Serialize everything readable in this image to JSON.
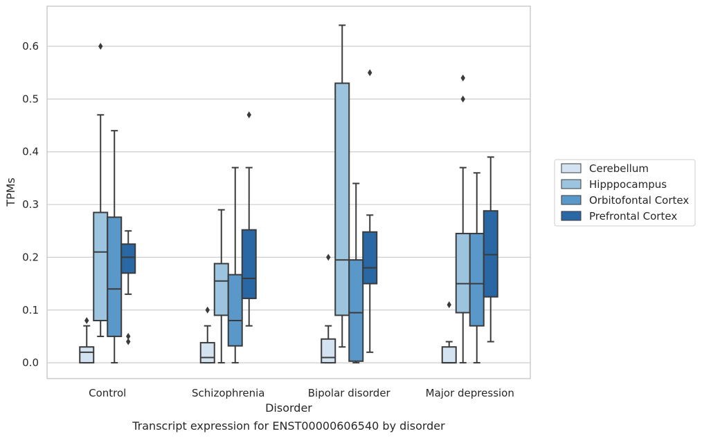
{
  "chart_data": {
    "type": "box",
    "xlabel": "Disorder",
    "ylabel": "TPMs",
    "caption": "Transcript expression for ENST00000606540 by disorder",
    "ylim": [
      -0.03,
      0.676
    ],
    "yticks": [
      0.0,
      0.1,
      0.2,
      0.3,
      0.4,
      0.5,
      0.6
    ],
    "ytick_labels": [
      "0.0",
      "0.1",
      "0.2",
      "0.3",
      "0.4",
      "0.5",
      "0.6"
    ],
    "grid": "horizontal",
    "legend_position": "right",
    "categories": [
      "Control",
      "Schizophrenia",
      "Bipolar disorder",
      "Major depression"
    ],
    "series": [
      {
        "name": "Cerebellum",
        "color": "#d4e3f2",
        "boxes": [
          {
            "whislo": 0.0,
            "q1": 0.0,
            "med": 0.02,
            "q3": 0.03,
            "whishi": 0.07,
            "fliers": [
              0.08
            ]
          },
          {
            "whislo": 0.0,
            "q1": 0.0,
            "med": 0.01,
            "q3": 0.038,
            "whishi": 0.07,
            "fliers": [
              0.1
            ]
          },
          {
            "whislo": 0.0,
            "q1": 0.0,
            "med": 0.01,
            "q3": 0.045,
            "whishi": 0.07,
            "fliers": [
              0.2
            ]
          },
          {
            "whislo": 0.0,
            "q1": 0.0,
            "med": 0.0,
            "q3": 0.03,
            "whishi": 0.04,
            "fliers": [
              0.11
            ]
          }
        ]
      },
      {
        "name": "Hipppocampus",
        "color": "#9cc4df",
        "boxes": [
          {
            "whislo": 0.05,
            "q1": 0.08,
            "med": 0.21,
            "q3": 0.285,
            "whishi": 0.47,
            "fliers": [
              0.6
            ]
          },
          {
            "whislo": 0.0,
            "q1": 0.09,
            "med": 0.155,
            "q3": 0.188,
            "whishi": 0.29,
            "fliers": []
          },
          {
            "whislo": 0.03,
            "q1": 0.09,
            "med": 0.195,
            "q3": 0.53,
            "whishi": 0.64,
            "fliers": []
          },
          {
            "whislo": 0.0,
            "q1": 0.095,
            "med": 0.15,
            "q3": 0.245,
            "whishi": 0.37,
            "fliers": [
              0.5,
              0.54
            ]
          }
        ]
      },
      {
        "name": "Orbitofontal Cortex",
        "color": "#5998c8",
        "boxes": [
          {
            "whislo": 0.0,
            "q1": 0.05,
            "med": 0.14,
            "q3": 0.276,
            "whishi": 0.44,
            "fliers": []
          },
          {
            "whislo": 0.0,
            "q1": 0.032,
            "med": 0.08,
            "q3": 0.167,
            "whishi": 0.37,
            "fliers": []
          },
          {
            "whislo": 0.0,
            "q1": 0.003,
            "med": 0.095,
            "q3": 0.195,
            "whishi": 0.34,
            "fliers": []
          },
          {
            "whislo": 0.0,
            "q1": 0.07,
            "med": 0.15,
            "q3": 0.245,
            "whishi": 0.36,
            "fliers": []
          }
        ]
      },
      {
        "name": "Prefrontal Cortex",
        "color": "#2a67a5",
        "boxes": [
          {
            "whislo": 0.13,
            "q1": 0.17,
            "med": 0.2,
            "q3": 0.225,
            "whishi": 0.25,
            "fliers": [
              0.04,
              0.05
            ]
          },
          {
            "whislo": 0.07,
            "q1": 0.122,
            "med": 0.16,
            "q3": 0.252,
            "whishi": 0.37,
            "fliers": [
              0.47
            ]
          },
          {
            "whislo": 0.02,
            "q1": 0.15,
            "med": 0.18,
            "q3": 0.248,
            "whishi": 0.28,
            "fliers": [
              0.55
            ]
          },
          {
            "whislo": 0.04,
            "q1": 0.125,
            "med": 0.205,
            "q3": 0.288,
            "whishi": 0.39,
            "fliers": []
          }
        ]
      }
    ]
  }
}
